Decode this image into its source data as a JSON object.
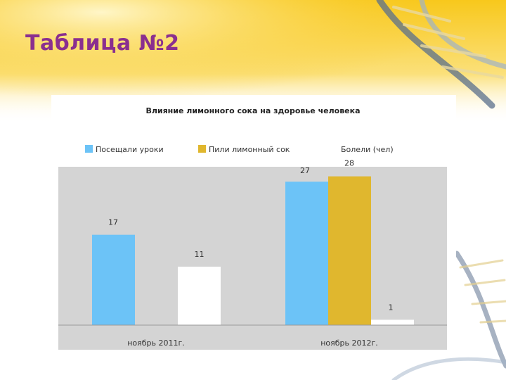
{
  "slide": {
    "title": "Таблица №2"
  },
  "colors": {
    "title": "#8a2f8f",
    "plot_background": "#d4d4d4",
    "series": [
      "#6cc3f7",
      "#e0b72e",
      "#ffffff"
    ],
    "slide_accent": "#f7c72a"
  },
  "chart_data": {
    "type": "bar",
    "title": "Влияние лимонного сока на здоровье человека",
    "categories": [
      "ноябрь 2011г.",
      "ноябрь 2012г."
    ],
    "series": [
      {
        "name": "Посещали уроки",
        "values": [
          17,
          27
        ]
      },
      {
        "name": "Пили лимонный сок",
        "values": [
          null,
          28
        ]
      },
      {
        "name": "Болели (чел)",
        "values": [
          11,
          1
        ]
      }
    ],
    "ylim": [
      0,
      30
    ],
    "grid": false,
    "legend_position": "top",
    "show_data_labels": true
  }
}
